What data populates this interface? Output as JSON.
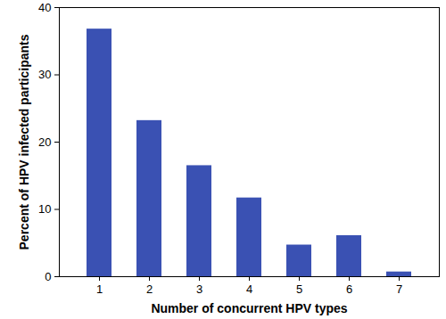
{
  "chart_data": {
    "type": "bar",
    "x_label": "Number of concurrent HPV types",
    "y_label": "Percent of HPV infected participants",
    "categories": [
      "1",
      "2",
      "3",
      "4",
      "5",
      "6",
      "7"
    ],
    "values": [
      36.8,
      23.2,
      16.5,
      11.7,
      4.7,
      6.1,
      0.7
    ],
    "color": "#3a51b3",
    "ylim": [
      0,
      40
    ],
    "yticks": [
      0,
      10,
      20,
      30,
      40
    ],
    "grid": false
  }
}
